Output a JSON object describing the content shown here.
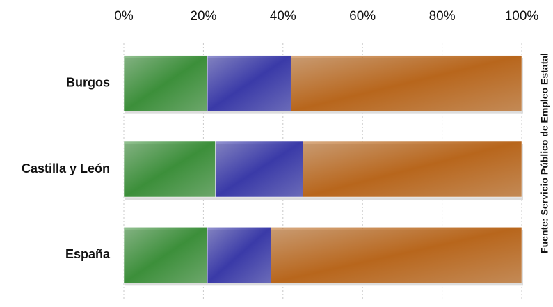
{
  "chart_data": {
    "type": "stacked-bar-horizontal",
    "categories": [
      "Burgos",
      "Castilla y León",
      "España"
    ],
    "series": [
      {
        "color": "#3c8f3a",
        "values": [
          21,
          23,
          21
        ]
      },
      {
        "color": "#3a3aa8",
        "values": [
          21,
          22,
          16
        ]
      },
      {
        "color": "#b8661c",
        "values": [
          58,
          55,
          63
        ]
      }
    ],
    "xlim": [
      0,
      100
    ],
    "xticks": [
      {
        "value": 0,
        "label": "0%"
      },
      {
        "value": 20,
        "label": "20%"
      },
      {
        "value": 40,
        "label": "40%"
      },
      {
        "value": 60,
        "label": "60%"
      },
      {
        "value": 80,
        "label": "80%"
      },
      {
        "value": 100,
        "label": "100%"
      }
    ],
    "grid": true,
    "source": "Fuente: Servicio Público de Empleo Estatal"
  }
}
